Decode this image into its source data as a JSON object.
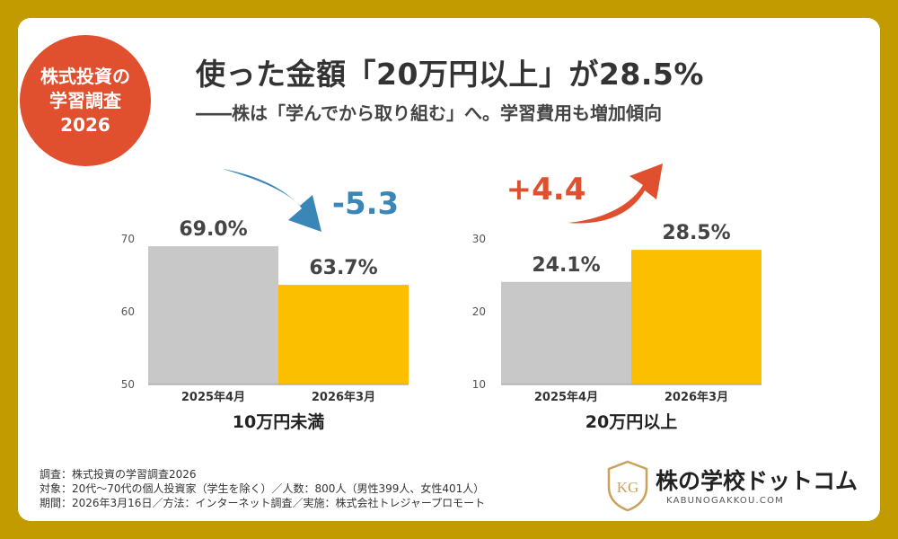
{
  "badge": {
    "line1": "株式投資の",
    "line2": "学習調査",
    "line3": "2026"
  },
  "header": {
    "title": "使った金額「20万円以上」が28.5%",
    "subtitle": "――株は「学んでから取り組む」へ。学習費用も増加傾向"
  },
  "chart_data": [
    {
      "type": "bar",
      "title": "10万円未満",
      "categories": [
        "2025年4月",
        "2026年3月"
      ],
      "values": [
        69.0,
        63.7
      ],
      "value_labels": [
        "69.0%",
        "63.7%"
      ],
      "ylim": [
        50,
        70
      ],
      "yticks": [
        50,
        60,
        70
      ],
      "colors": [
        "#C8C8C8",
        "#FBBF00"
      ],
      "change_label": "-5.3",
      "change_color": "#3A86B7",
      "grid": false
    },
    {
      "type": "bar",
      "title": "20万円以上",
      "categories": [
        "2025年4月",
        "2026年3月"
      ],
      "values": [
        24.1,
        28.5
      ],
      "value_labels": [
        "24.1%",
        "28.5%"
      ],
      "ylim": [
        10,
        30
      ],
      "yticks": [
        10,
        20,
        30
      ],
      "colors": [
        "#C8C8C8",
        "#FBBF00"
      ],
      "change_label": "+4.4",
      "change_color": "#E04F2E",
      "grid": false
    }
  ],
  "footer": {
    "line1": "調査：株式投資の学習調査2026",
    "line2": "対象：20代〜70代の個人投資家（学生を除く）／人数：800人（男性399人、女性401人）",
    "line3": "期間：2026年3月16日／方法：インターネット調査／実施：株式会社トレジャープロモート"
  },
  "logo": {
    "name": "株の学校ドットコム",
    "domain": "KABUNOGAKKOU.COM",
    "mark": "KG"
  },
  "colors": {
    "frame": "#C29B00",
    "accent": "#E04F2E",
    "blue": "#3A86B7",
    "yellow": "#FBBF00",
    "gray": "#C8C8C8"
  }
}
